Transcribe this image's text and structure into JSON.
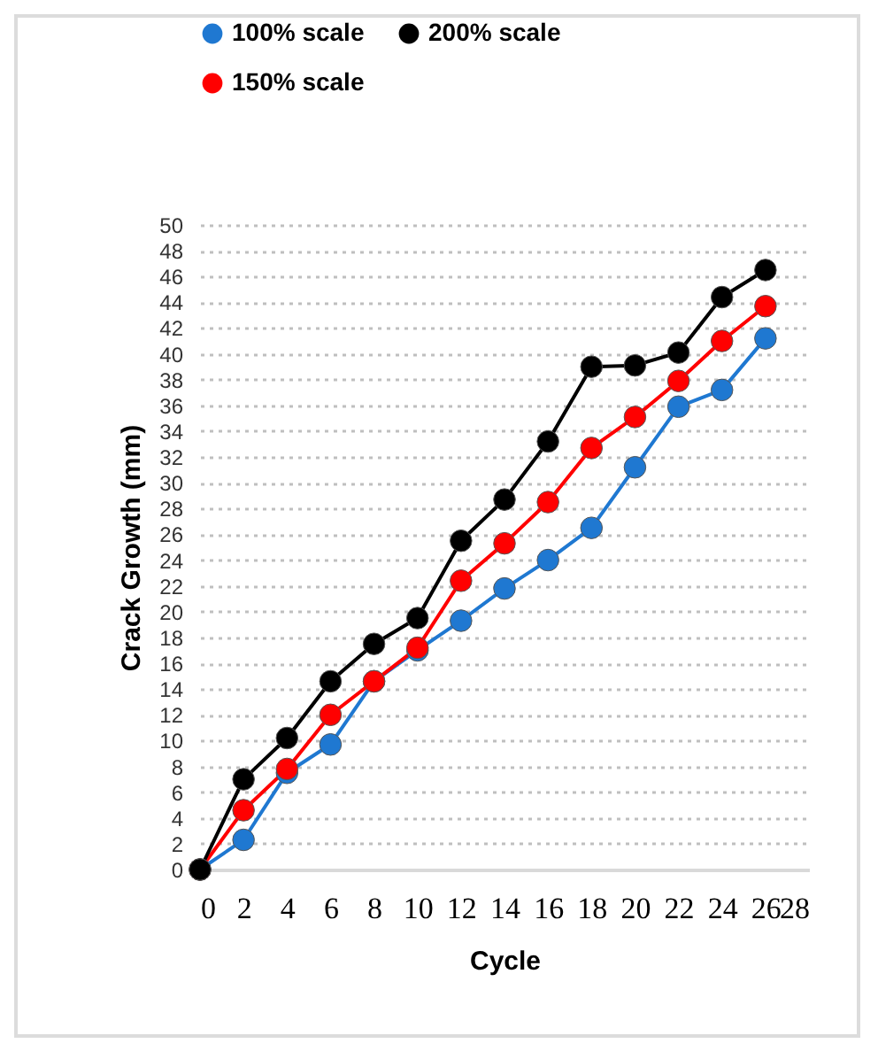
{
  "chart_data": {
    "type": "line",
    "xlabel": "Cycle",
    "ylabel": "Crack Growth (mm)",
    "x": [
      0,
      2,
      4,
      6,
      8,
      10,
      12,
      14,
      16,
      18,
      20,
      22,
      24,
      26
    ],
    "series": [
      {
        "name": "100% scale",
        "color": "#1f78d1",
        "values": [
          0,
          2.3,
          7.5,
          9.7,
          14.6,
          17,
          19.3,
          21.8,
          24,
          26.5,
          31.2,
          35.9,
          37.2,
          41.2
        ]
      },
      {
        "name": "150% scale",
        "color": "#ff0000",
        "values": [
          0,
          4.6,
          7.8,
          12,
          14.6,
          17.2,
          22.4,
          25.3,
          28.5,
          32.7,
          35.1,
          37.9,
          41,
          43.7
        ]
      },
      {
        "name": "200% scale",
        "color": "#000000",
        "values": [
          0,
          7,
          10.2,
          14.6,
          17.5,
          19.5,
          25.5,
          28.7,
          33.2,
          39,
          39.1,
          40.1,
          44.4,
          46.5
        ]
      }
    ],
    "xlim": [
      0,
      28
    ],
    "xticks": [
      0,
      2,
      4,
      6,
      8,
      10,
      12,
      14,
      16,
      18,
      20,
      22,
      24,
      26,
      28
    ],
    "ylim": [
      0,
      50
    ],
    "yticks": [
      0,
      2,
      4,
      6,
      8,
      10,
      12,
      14,
      16,
      18,
      20,
      22,
      24,
      26,
      28,
      30,
      32,
      34,
      36,
      38,
      40,
      42,
      44,
      46,
      48,
      50
    ],
    "grid": "y",
    "legend": "top",
    "marker": "circle",
    "line_style": "solid"
  }
}
